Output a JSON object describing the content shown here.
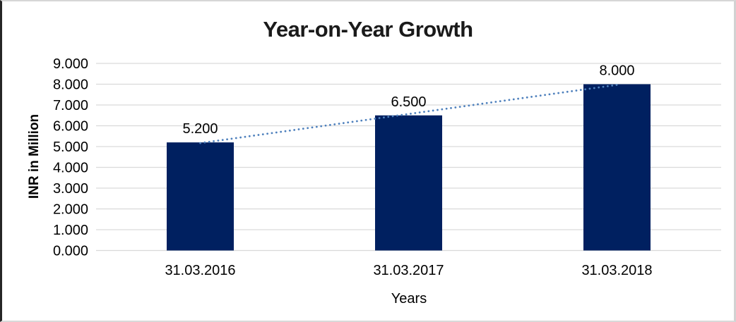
{
  "chart_data": {
    "type": "bar",
    "title": "Year-on-Year Growth",
    "xlabel": "Years",
    "ylabel": "INR in Million",
    "categories": [
      "31.03.2016",
      "31.03.2017",
      "31.03.2018"
    ],
    "values": [
      5.2,
      6.5,
      8.0
    ],
    "data_labels": [
      "5.200",
      "6.500",
      "8.000"
    ],
    "y_ticks": [
      "0.000",
      "1.000",
      "2.000",
      "3.000",
      "4.000",
      "5.000",
      "6.000",
      "7.000",
      "8.000",
      "9.000"
    ],
    "ylim": [
      0,
      9
    ],
    "grid": "horizontal",
    "legend": "none",
    "trendline": {
      "type": "linear",
      "style": "dotted"
    },
    "colors": {
      "bar": "#002060",
      "trendline": "#4f81bd",
      "gridline": "#d9d9d9",
      "text": "#000000"
    }
  }
}
